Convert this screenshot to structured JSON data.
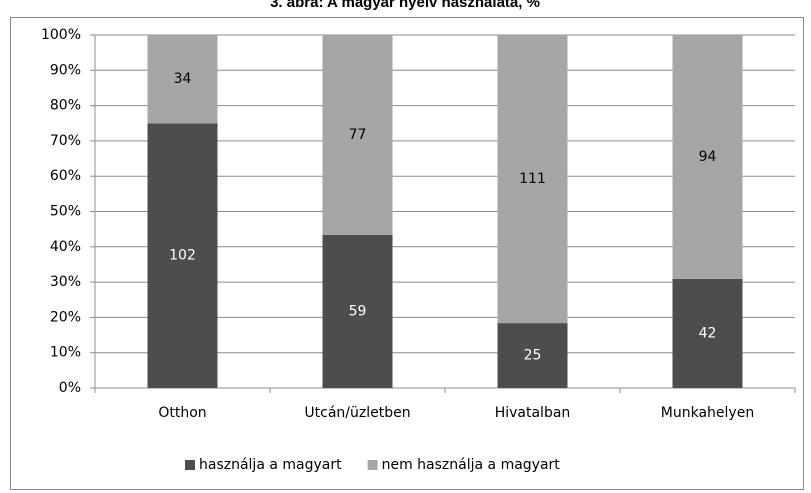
{
  "chart_data": {
    "type": "bar",
    "stacked": "percent",
    "title": "3. ábra: A magyar nyelv használata, %",
    "categories": [
      "Otthon",
      "Utcán/üzletben",
      "Hivatalban",
      "Munkahelyen"
    ],
    "series": [
      {
        "name": "használja a magyart",
        "color": "#4d4d4d",
        "label_color": "#ffffff",
        "values": [
          102,
          59,
          25,
          42
        ]
      },
      {
        "name": "nem használja a magyart",
        "color": "#a6a6a6",
        "label_color": "#000000",
        "values": [
          34,
          77,
          111,
          94
        ]
      }
    ],
    "ylim": [
      0,
      100
    ],
    "yticks": [
      {
        "value": 0,
        "label": "0%"
      },
      {
        "value": 10,
        "label": "10%"
      },
      {
        "value": 20,
        "label": "20%"
      },
      {
        "value": 30,
        "label": "30%"
      },
      {
        "value": 40,
        "label": "40%"
      },
      {
        "value": 50,
        "label": "50%"
      },
      {
        "value": 60,
        "label": "60%"
      },
      {
        "value": 70,
        "label": "70%"
      },
      {
        "value": 80,
        "label": "80%"
      },
      {
        "value": 90,
        "label": "90%"
      },
      {
        "value": 100,
        "label": "100%"
      }
    ],
    "grid": true,
    "legend": "bottom"
  }
}
